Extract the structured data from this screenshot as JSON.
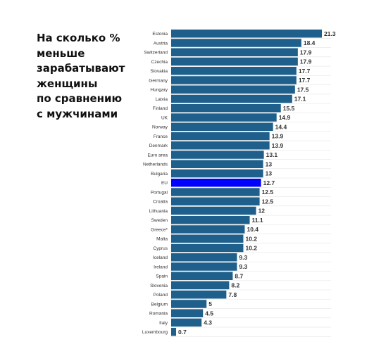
{
  "title_lines": [
    "На сколько %",
    "меньше",
    "зарабатывают",
    "женщины",
    "по сравнению",
    "с мужчинами"
  ],
  "colors": {
    "bar": "#1f5f8b",
    "highlight": "#0000ff",
    "text": "#333333"
  },
  "chart_data": {
    "type": "bar",
    "orientation": "horizontal",
    "title": "На сколько % меньше зарабатывают женщины по сравнению с мужчинами",
    "categories": [
      "Estonia",
      "Austria",
      "Switzerland",
      "Czechia",
      "Slovakia",
      "Germany",
      "Hungary",
      "Latvia",
      "Finland",
      "UK",
      "Norway",
      "France",
      "Denmark",
      "Euro area",
      "Netherlands",
      "Bulgaria",
      "EU",
      "Portugal",
      "Croatia",
      "Lithuania",
      "Sweden",
      "Greece*",
      "Malta",
      "Cyprus",
      "Iceland",
      "Ireland",
      "Spain",
      "Slovenia",
      "Poland",
      "Belgium",
      "Romania",
      "Italy",
      "Luxembourg"
    ],
    "values": [
      21.3,
      18.4,
      17.9,
      17.9,
      17.7,
      17.7,
      17.5,
      17.1,
      15.5,
      14.9,
      14.4,
      13.9,
      13.9,
      13.1,
      13,
      13,
      12.7,
      12.5,
      12.5,
      12,
      11.1,
      10.4,
      10.2,
      10.2,
      9.3,
      9.3,
      8.7,
      8.2,
      7.8,
      5,
      4.5,
      4.3,
      0.7
    ],
    "value_labels": [
      "21.3",
      "18.4",
      "17.9",
      "17.9",
      "17.7",
      "17.7",
      "17.5",
      "17.1",
      "15.5",
      "14.9",
      "14.4",
      "13.9",
      "13.9",
      "13.1",
      "13",
      "13",
      "12.7",
      "12.5",
      "12.5",
      "12",
      "11.1",
      "10.4",
      "10.2",
      "10.2",
      "9.3",
      "9.3",
      "8.7",
      "8.2",
      "7.8",
      "5",
      "4.5",
      "4.3",
      "0.7"
    ],
    "highlight": "EU",
    "xlim": [
      0,
      21.3
    ],
    "grid": true,
    "legend": "none"
  }
}
